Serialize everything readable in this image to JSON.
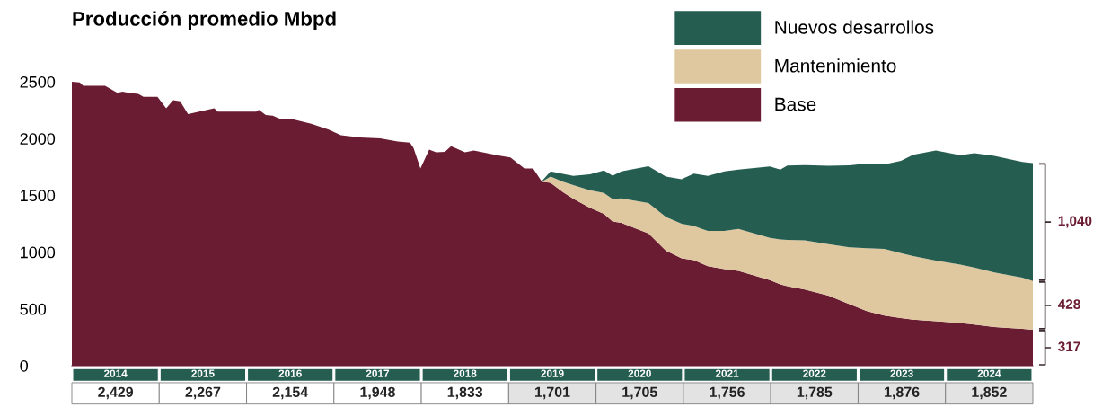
{
  "chart_data": {
    "type": "area",
    "title": "Producción promedio Mbpd",
    "stacked": true,
    "legend": "top right",
    "x": [
      2014.0,
      2014.09,
      2014.13,
      2014.38,
      2014.52,
      2014.58,
      2014.66,
      2014.76,
      2014.82,
      2014.98,
      2015.08,
      2015.16,
      2015.24,
      2015.33,
      2015.63,
      2015.67,
      2016.11,
      2016.14,
      2016.22,
      2016.3,
      2016.4,
      2016.54,
      2016.74,
      2016.94,
      2017.08,
      2017.3,
      2017.53,
      2017.73,
      2017.87,
      2017.91,
      2017.99,
      2018.09,
      2018.17,
      2018.27,
      2018.34,
      2018.5,
      2018.6,
      2018.88,
      2019.02,
      2019.18,
      2019.28,
      2019.38,
      2019.48,
      2019.62,
      2019.74,
      2019.93,
      2020.09,
      2020.19,
      2020.29,
      2020.6,
      2020.8,
      2020.98,
      2021.12,
      2021.28,
      2021.47,
      2021.63,
      2021.99,
      2022.11,
      2022.19,
      2022.39,
      2022.66,
      2022.9,
      2023.1,
      2023.3,
      2023.49,
      2023.63,
      2023.89,
      2024.17,
      2024.33,
      2024.56,
      2024.88,
      2025.0
    ],
    "series": [
      {
        "name": "Base",
        "color": "#6a1c32",
        "values": [
          2500,
          2495,
          2465,
          2465,
          2404,
          2413,
          2401,
          2394,
          2367,
          2367,
          2267,
          2337,
          2328,
          2216,
          2267,
          2237,
          2237,
          2252,
          2207,
          2201,
          2167,
          2167,
          2131,
          2079,
          2030,
          2009,
          2002,
          1973,
          1964,
          1918,
          1736,
          1902,
          1879,
          1882,
          1933,
          1879,
          1894,
          1851,
          1834,
          1736,
          1736,
          1620,
          1610,
          1529,
          1470,
          1390,
          1337,
          1270,
          1258,
          1164,
          1013,
          946,
          930,
          876,
          850,
          835,
          754,
          715,
          700,
          670,
          618,
          541,
          480,
          441,
          420,
          405,
          391,
          375,
          362,
          340,
          325,
          317
        ]
      },
      {
        "name": "Mantenimiento",
        "color": "#dfc8a0",
        "values": [
          null,
          null,
          null,
          null,
          null,
          null,
          null,
          null,
          null,
          null,
          null,
          null,
          null,
          null,
          null,
          null,
          null,
          null,
          null,
          null,
          null,
          null,
          null,
          null,
          null,
          null,
          null,
          null,
          null,
          null,
          null,
          null,
          null,
          null,
          null,
          null,
          null,
          null,
          null,
          null,
          null,
          0,
          55,
          91,
          120,
          154,
          183,
          198,
          216,
          268,
          297,
          304,
          300,
          310,
          336,
          370,
          371,
          397,
          408,
          434,
          452,
          502,
          555,
          587,
          570,
          560,
          534,
          515,
          503,
          480,
          450,
          428
        ]
      },
      {
        "name": "Nuevos desarrollos",
        "color": "#255d50",
        "values": [
          null,
          null,
          null,
          null,
          null,
          null,
          null,
          null,
          null,
          null,
          null,
          null,
          null,
          null,
          null,
          null,
          null,
          null,
          null,
          null,
          null,
          null,
          null,
          null,
          null,
          null,
          null,
          null,
          null,
          null,
          null,
          null,
          null,
          null,
          null,
          null,
          null,
          null,
          null,
          null,
          null,
          5,
          46,
          70,
          82,
          141,
          199,
          206,
          237,
          325,
          355,
          392,
          462,
          486,
          524,
          521,
          630,
          614,
          655,
          662,
          690,
          722,
          746,
          744,
          813,
          892,
          969,
          964,
          1007,
          1028,
          1018,
          1040
        ]
      }
    ],
    "xticks": [
      {
        "value": 2014.5,
        "label": "2014"
      },
      {
        "value": 2015.5,
        "label": "2015"
      },
      {
        "value": 2016.5,
        "label": "2016"
      },
      {
        "value": 2017.5,
        "label": "2017"
      },
      {
        "value": 2018.5,
        "label": "2018"
      },
      {
        "value": 2019.5,
        "label": "2019"
      },
      {
        "value": 2020.5,
        "label": "2020"
      },
      {
        "value": 2021.5,
        "label": "2021"
      },
      {
        "value": 2022.5,
        "label": "2022"
      },
      {
        "value": 2023.5,
        "label": "2023"
      },
      {
        "value": 2024.5,
        "label": "2024"
      }
    ],
    "xlim": [
      2014,
      2025
    ],
    "ylim": [
      0,
      2500
    ],
    "yticks": [
      0,
      500,
      1000,
      1500,
      2000,
      2500
    ],
    "grid": false,
    "annotations": [
      "2,429",
      "2,267",
      "2,154",
      "1,948",
      "1,833",
      "1,701",
      "1,705",
      "1,756",
      "1,785",
      "1,876",
      "1,852",
      "1,040",
      "428",
      "317"
    ]
  }
}
